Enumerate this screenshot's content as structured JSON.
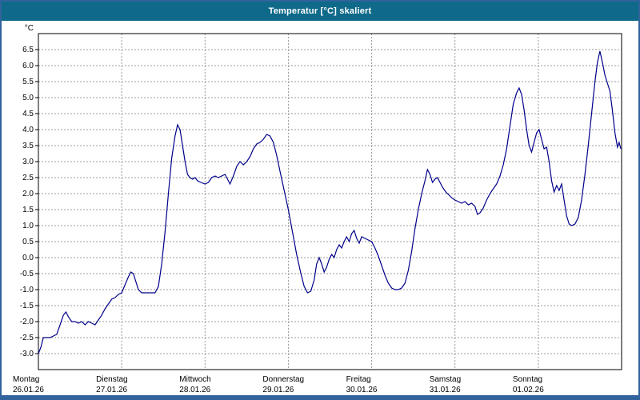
{
  "window": {
    "title": "Temperatur [°C] skaliert"
  },
  "colors": {
    "frame": "#31639c",
    "titlebar": "#0f6a8a",
    "line": "#00008b",
    "grid": "#9a9a9a"
  },
  "chart_data": {
    "type": "line",
    "title": "Temperatur [°C] skaliert",
    "y_unit": "°C",
    "ylim": [
      -3.5,
      7.0
    ],
    "grid": true,
    "legend": "none",
    "y_ticks": [
      "6.5",
      "6.0",
      "5.5",
      "5.0",
      "4.5",
      "4.0",
      "3.5",
      "3.0",
      "2.5",
      "2.0",
      "1.5",
      "1.0",
      "0.5",
      "0.0",
      "-0.5",
      "-1.0",
      "-1.5",
      "-2.0",
      "-2.5",
      "-3.0"
    ],
    "x_ticks": [
      {
        "day": "Montag",
        "date": "26.01.26"
      },
      {
        "day": "Dienstag",
        "date": "27.01.26"
      },
      {
        "day": "Mittwoch",
        "date": "28.01.26"
      },
      {
        "day": "Donnerstag",
        "date": "29.01.26"
      },
      {
        "day": "Freitag",
        "date": "30.01.26"
      },
      {
        "day": "Samstag",
        "date": "31.01.26"
      },
      {
        "day": "Sonntag",
        "date": "01.02.26"
      }
    ],
    "x_range_days": [
      0,
      7
    ],
    "series": [
      {
        "name": "Temperatur",
        "color": "#00008b",
        "points": [
          [
            0.0,
            -3.0
          ],
          [
            0.03,
            -2.8
          ],
          [
            0.06,
            -2.5
          ],
          [
            0.1,
            -2.5
          ],
          [
            0.14,
            -2.5
          ],
          [
            0.18,
            -2.45
          ],
          [
            0.22,
            -2.4
          ],
          [
            0.26,
            -2.1
          ],
          [
            0.3,
            -1.8
          ],
          [
            0.33,
            -1.7
          ],
          [
            0.36,
            -1.85
          ],
          [
            0.4,
            -2.0
          ],
          [
            0.44,
            -2.0
          ],
          [
            0.48,
            -2.05
          ],
          [
            0.52,
            -2.0
          ],
          [
            0.56,
            -2.1
          ],
          [
            0.6,
            -2.0
          ],
          [
            0.64,
            -2.05
          ],
          [
            0.68,
            -2.1
          ],
          [
            0.72,
            -1.95
          ],
          [
            0.76,
            -1.8
          ],
          [
            0.8,
            -1.6
          ],
          [
            0.84,
            -1.45
          ],
          [
            0.88,
            -1.3
          ],
          [
            0.92,
            -1.25
          ],
          [
            0.96,
            -1.15
          ],
          [
            1.0,
            -1.1
          ],
          [
            1.04,
            -0.85
          ],
          [
            1.08,
            -0.6
          ],
          [
            1.11,
            -0.45
          ],
          [
            1.14,
            -0.5
          ],
          [
            1.17,
            -0.75
          ],
          [
            1.2,
            -1.0
          ],
          [
            1.24,
            -1.1
          ],
          [
            1.28,
            -1.1
          ],
          [
            1.32,
            -1.1
          ],
          [
            1.36,
            -1.1
          ],
          [
            1.4,
            -1.1
          ],
          [
            1.44,
            -0.9
          ],
          [
            1.48,
            -0.2
          ],
          [
            1.52,
            0.8
          ],
          [
            1.56,
            2.0
          ],
          [
            1.6,
            3.1
          ],
          [
            1.64,
            3.8
          ],
          [
            1.67,
            4.15
          ],
          [
            1.7,
            4.0
          ],
          [
            1.73,
            3.5
          ],
          [
            1.76,
            3.0
          ],
          [
            1.79,
            2.6
          ],
          [
            1.82,
            2.5
          ],
          [
            1.85,
            2.45
          ],
          [
            1.88,
            2.5
          ],
          [
            1.91,
            2.4
          ],
          [
            1.95,
            2.35
          ],
          [
            2.0,
            2.3
          ],
          [
            2.04,
            2.35
          ],
          [
            2.08,
            2.5
          ],
          [
            2.12,
            2.55
          ],
          [
            2.16,
            2.5
          ],
          [
            2.2,
            2.55
          ],
          [
            2.24,
            2.6
          ],
          [
            2.27,
            2.45
          ],
          [
            2.3,
            2.3
          ],
          [
            2.34,
            2.55
          ],
          [
            2.38,
            2.85
          ],
          [
            2.42,
            3.0
          ],
          [
            2.46,
            2.9
          ],
          [
            2.5,
            3.0
          ],
          [
            2.54,
            3.15
          ],
          [
            2.58,
            3.4
          ],
          [
            2.62,
            3.55
          ],
          [
            2.66,
            3.6
          ],
          [
            2.7,
            3.7
          ],
          [
            2.74,
            3.85
          ],
          [
            2.78,
            3.8
          ],
          [
            2.82,
            3.6
          ],
          [
            2.86,
            3.2
          ],
          [
            2.9,
            2.7
          ],
          [
            2.95,
            2.1
          ],
          [
            3.0,
            1.5
          ],
          [
            3.05,
            0.8
          ],
          [
            3.1,
            0.1
          ],
          [
            3.15,
            -0.5
          ],
          [
            3.19,
            -0.9
          ],
          [
            3.23,
            -1.1
          ],
          [
            3.27,
            -1.05
          ],
          [
            3.31,
            -0.7
          ],
          [
            3.34,
            -0.2
          ],
          [
            3.37,
            0.0
          ],
          [
            3.4,
            -0.2
          ],
          [
            3.43,
            -0.45
          ],
          [
            3.46,
            -0.3
          ],
          [
            3.49,
            -0.05
          ],
          [
            3.52,
            0.1
          ],
          [
            3.55,
            0.0
          ],
          [
            3.58,
            0.25
          ],
          [
            3.61,
            0.4
          ],
          [
            3.64,
            0.3
          ],
          [
            3.67,
            0.5
          ],
          [
            3.7,
            0.65
          ],
          [
            3.73,
            0.5
          ],
          [
            3.76,
            0.75
          ],
          [
            3.79,
            0.85
          ],
          [
            3.82,
            0.6
          ],
          [
            3.85,
            0.45
          ],
          [
            3.88,
            0.65
          ],
          [
            3.92,
            0.6
          ],
          [
            3.96,
            0.55
          ],
          [
            4.0,
            0.5
          ],
          [
            4.04,
            0.3
          ],
          [
            4.08,
            0.05
          ],
          [
            4.12,
            -0.25
          ],
          [
            4.16,
            -0.55
          ],
          [
            4.2,
            -0.8
          ],
          [
            4.24,
            -0.95
          ],
          [
            4.28,
            -1.0
          ],
          [
            4.32,
            -1.0
          ],
          [
            4.36,
            -0.95
          ],
          [
            4.4,
            -0.8
          ],
          [
            4.44,
            -0.4
          ],
          [
            4.48,
            0.2
          ],
          [
            4.52,
            0.9
          ],
          [
            4.56,
            1.5
          ],
          [
            4.6,
            2.0
          ],
          [
            4.64,
            2.4
          ],
          [
            4.67,
            2.75
          ],
          [
            4.7,
            2.6
          ],
          [
            4.73,
            2.35
          ],
          [
            4.76,
            2.45
          ],
          [
            4.79,
            2.5
          ],
          [
            4.82,
            2.35
          ],
          [
            4.85,
            2.2
          ],
          [
            4.89,
            2.05
          ],
          [
            4.93,
            1.95
          ],
          [
            4.97,
            1.85
          ],
          [
            5.0,
            1.8
          ],
          [
            5.04,
            1.75
          ],
          [
            5.08,
            1.7
          ],
          [
            5.12,
            1.75
          ],
          [
            5.16,
            1.65
          ],
          [
            5.2,
            1.7
          ],
          [
            5.24,
            1.6
          ],
          [
            5.27,
            1.35
          ],
          [
            5.3,
            1.4
          ],
          [
            5.34,
            1.55
          ],
          [
            5.38,
            1.8
          ],
          [
            5.42,
            2.0
          ],
          [
            5.46,
            2.15
          ],
          [
            5.5,
            2.3
          ],
          [
            5.54,
            2.55
          ],
          [
            5.58,
            2.9
          ],
          [
            5.62,
            3.4
          ],
          [
            5.66,
            4.1
          ],
          [
            5.7,
            4.8
          ],
          [
            5.74,
            5.15
          ],
          [
            5.77,
            5.3
          ],
          [
            5.8,
            5.1
          ],
          [
            5.83,
            4.6
          ],
          [
            5.86,
            4.0
          ],
          [
            5.89,
            3.5
          ],
          [
            5.92,
            3.3
          ],
          [
            5.95,
            3.6
          ],
          [
            5.98,
            3.9
          ],
          [
            6.01,
            4.0
          ],
          [
            6.04,
            3.7
          ],
          [
            6.07,
            3.4
          ],
          [
            6.1,
            3.45
          ],
          [
            6.13,
            3.0
          ],
          [
            6.16,
            2.4
          ],
          [
            6.19,
            2.05
          ],
          [
            6.22,
            2.25
          ],
          [
            6.25,
            2.1
          ],
          [
            6.28,
            2.3
          ],
          [
            6.31,
            1.8
          ],
          [
            6.34,
            1.3
          ],
          [
            6.37,
            1.05
          ],
          [
            6.4,
            1.0
          ],
          [
            6.44,
            1.05
          ],
          [
            6.48,
            1.25
          ],
          [
            6.52,
            1.8
          ],
          [
            6.56,
            2.6
          ],
          [
            6.6,
            3.5
          ],
          [
            6.64,
            4.5
          ],
          [
            6.68,
            5.5
          ],
          [
            6.71,
            6.1
          ],
          [
            6.74,
            6.45
          ],
          [
            6.77,
            6.1
          ],
          [
            6.8,
            5.7
          ],
          [
            6.83,
            5.45
          ],
          [
            6.86,
            5.2
          ],
          [
            6.89,
            4.6
          ],
          [
            6.92,
            3.9
          ],
          [
            6.95,
            3.45
          ],
          [
            6.97,
            3.6
          ],
          [
            6.99,
            3.4
          ]
        ]
      }
    ]
  }
}
